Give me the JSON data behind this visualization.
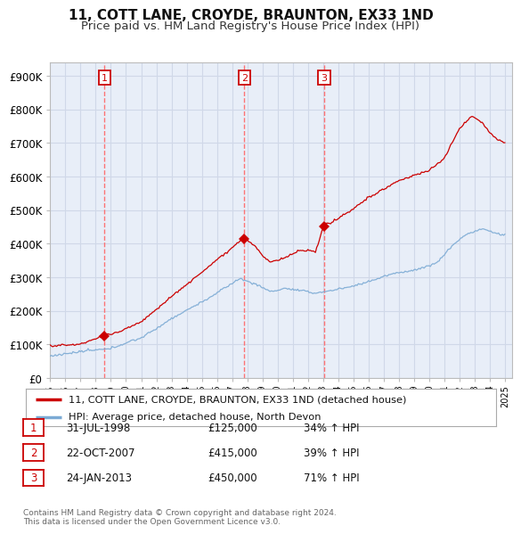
{
  "title": "11, COTT LANE, CROYDE, BRAUNTON, EX33 1ND",
  "subtitle": "Price paid vs. HM Land Registry's House Price Index (HPI)",
  "yticks": [
    0,
    100000,
    200000,
    300000,
    400000,
    500000,
    600000,
    700000,
    800000,
    900000
  ],
  "ytick_labels": [
    "£0",
    "£100K",
    "£200K",
    "£300K",
    "£400K",
    "£500K",
    "£600K",
    "£700K",
    "£800K",
    "£900K"
  ],
  "ylim": [
    0,
    940000
  ],
  "xlim_start": 1995.0,
  "xlim_end": 2025.5,
  "sale_color": "#cc0000",
  "hpi_color": "#7baad4",
  "chart_bg": "#e8eef8",
  "sale_dates": [
    1998.58,
    2007.81,
    2013.07
  ],
  "sale_prices": [
    125000,
    415000,
    450000
  ],
  "sale_labels": [
    "1",
    "2",
    "3"
  ],
  "transaction_info": [
    {
      "label": "1",
      "date": "31-JUL-1998",
      "price": "£125,000",
      "hpi_pct": "34% ↑ HPI"
    },
    {
      "label": "2",
      "date": "22-OCT-2007",
      "price": "£415,000",
      "hpi_pct": "39% ↑ HPI"
    },
    {
      "label": "3",
      "date": "24-JAN-2013",
      "price": "£450,000",
      "hpi_pct": "71% ↑ HPI"
    }
  ],
  "legend_sale_label": "11, COTT LANE, CROYDE, BRAUNTON, EX33 1ND (detached house)",
  "legend_hpi_label": "HPI: Average price, detached house, North Devon",
  "footnote": "Contains HM Land Registry data © Crown copyright and database right 2024.\nThis data is licensed under the Open Government Licence v3.0.",
  "background_color": "#ffffff",
  "grid_color": "#d0d8e8"
}
